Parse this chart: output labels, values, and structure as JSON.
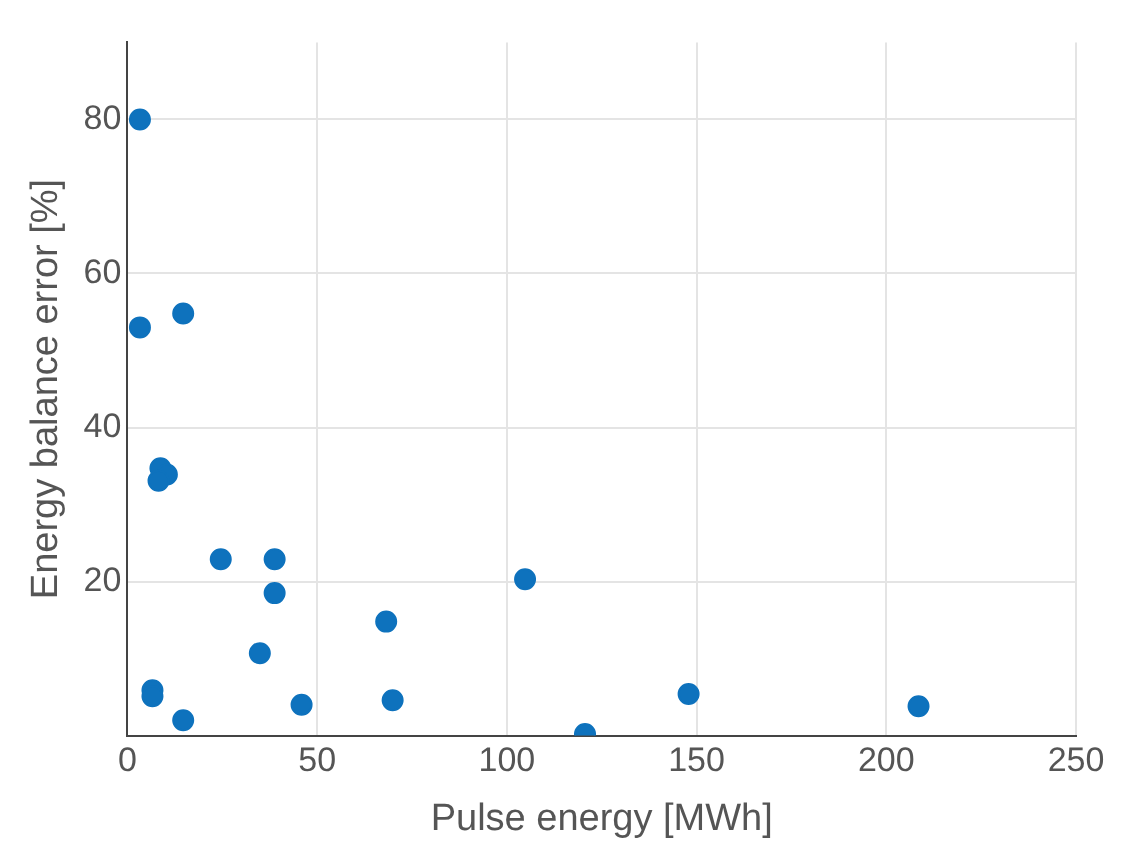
{
  "chart_data": {
    "type": "scatter",
    "xlabel": "Pulse energy [MWh]",
    "ylabel": "Energy balance error [%]",
    "x": [
      3.3,
      3.3,
      14.7,
      8.7,
      10.4,
      8.2,
      24.6,
      38.8,
      38.8,
      34.9,
      68.2,
      104.8,
      6.6,
      6.6,
      14.7,
      45.9,
      69.9,
      120.6,
      147.9,
      208.5
    ],
    "values": [
      80,
      53,
      54.8,
      34.7,
      33.9,
      33.1,
      22.9,
      22.9,
      18.5,
      10.7,
      14.8,
      20.3,
      5.9,
      5.1,
      2,
      4,
      4.6,
      0.2,
      5.4,
      3.8
    ],
    "color": "#0e72bd",
    "marker": "circle",
    "grid": true,
    "xlim": [
      0,
      250
    ],
    "xticks": [
      0,
      50,
      100,
      150,
      200,
      250
    ],
    "ylim": [
      0,
      90
    ],
    "yticks": [
      20,
      40,
      60,
      80
    ]
  }
}
